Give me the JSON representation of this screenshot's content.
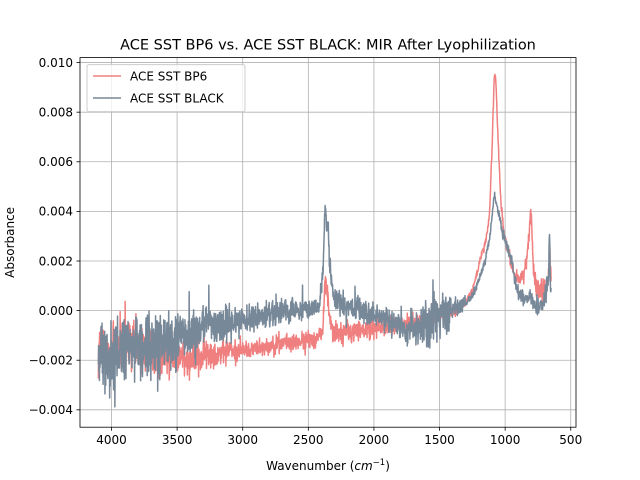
{
  "chart_data": {
    "type": "line",
    "title": "ACE SST BP6 vs. ACE SST BLACK: MIR After Lyophilization",
    "xlabel_prefix": "Wavenumber (",
    "xlabel_math": "cm",
    "xlabel_sup": "−1",
    "xlabel_suffix": ")",
    "ylabel": "Absorbance",
    "xlim": [
      4240,
      460
    ],
    "ylim": [
      -0.0047,
      0.0102
    ],
    "x_ticks": [
      4000,
      3500,
      3000,
      2500,
      2000,
      1500,
      1000,
      500
    ],
    "x_tick_labels": [
      "4000",
      "3500",
      "3000",
      "2500",
      "2000",
      "1500",
      "1000",
      "500"
    ],
    "y_ticks": [
      -0.004,
      -0.002,
      0.0,
      0.002,
      0.004,
      0.006,
      0.008,
      0.01
    ],
    "y_tick_labels": [
      "−0.004",
      "−0.002",
      "0.000",
      "0.002",
      "0.004",
      "0.006",
      "0.008",
      "0.010"
    ],
    "grid": true,
    "legend_position": "top-left",
    "series": [
      {
        "name": "ACE SST BP6",
        "color": "#f08080",
        "noise": [
          [
            4100,
            0.0013
          ],
          [
            3700,
            0.0011
          ],
          [
            3300,
            0.0007
          ],
          [
            3000,
            0.00035
          ],
          [
            2700,
            0.00035
          ],
          [
            2400,
            0.0004
          ],
          [
            2300,
            0.0005
          ],
          [
            1800,
            0.0004
          ],
          [
            1500,
            0.0003
          ],
          [
            1300,
            0.00012
          ],
          [
            1000,
            0.0002
          ],
          [
            650,
            0.0005
          ]
        ],
        "points": [
          [
            4100,
            -0.0016
          ],
          [
            4000,
            -0.0015
          ],
          [
            3900,
            -0.0014
          ],
          [
            3800,
            -0.0015
          ],
          [
            3700,
            -0.0016
          ],
          [
            3600,
            -0.0017
          ],
          [
            3500,
            -0.0018
          ],
          [
            3400,
            -0.0019
          ],
          [
            3300,
            -0.0018
          ],
          [
            3200,
            -0.0017
          ],
          [
            3100,
            -0.0016
          ],
          [
            3000,
            -0.0016
          ],
          [
            2900,
            -0.0015
          ],
          [
            2800,
            -0.0014
          ],
          [
            2700,
            -0.0013
          ],
          [
            2600,
            -0.0013
          ],
          [
            2500,
            -0.0012
          ],
          [
            2420,
            -0.0011
          ],
          [
            2390,
            -0.0007
          ],
          [
            2370,
            0.0012
          ],
          [
            2355,
            0.0008
          ],
          [
            2340,
            -0.0002
          ],
          [
            2320,
            -0.0006
          ],
          [
            2300,
            -0.0009
          ],
          [
            2200,
            -0.0009
          ],
          [
            2100,
            -0.0008
          ],
          [
            2000,
            -0.0007
          ],
          [
            1900,
            -0.0006
          ],
          [
            1800,
            -0.0006
          ],
          [
            1700,
            -0.0005
          ],
          [
            1600,
            -0.0004
          ],
          [
            1500,
            -0.0002
          ],
          [
            1400,
            -0.0001
          ],
          [
            1300,
            0.0003
          ],
          [
            1250,
            0.0008
          ],
          [
            1200,
            0.0018
          ],
          [
            1180,
            0.0023
          ],
          [
            1150,
            0.0027
          ],
          [
            1120,
            0.0038
          ],
          [
            1100,
            0.0065
          ],
          [
            1085,
            0.0092
          ],
          [
            1078,
            0.0096
          ],
          [
            1070,
            0.0092
          ],
          [
            1060,
            0.0078
          ],
          [
            1045,
            0.0058
          ],
          [
            1030,
            0.0042
          ],
          [
            1010,
            0.0032
          ],
          [
            990,
            0.0026
          ],
          [
            970,
            0.0023
          ],
          [
            950,
            0.0018
          ],
          [
            920,
            0.0014
          ],
          [
            900,
            0.0013
          ],
          [
            880,
            0.0013
          ],
          [
            860,
            0.0016
          ],
          [
            840,
            0.0018
          ],
          [
            820,
            0.0028
          ],
          [
            805,
            0.0043
          ],
          [
            795,
            0.0032
          ],
          [
            785,
            0.0017
          ],
          [
            770,
            0.0011
          ],
          [
            750,
            0.0009
          ],
          [
            730,
            0.0008
          ],
          [
            710,
            0.0009
          ],
          [
            690,
            0.0008
          ],
          [
            680,
            0.0011
          ],
          [
            670,
            0.0014
          ],
          [
            660,
            0.0024
          ],
          [
            650,
            0.0015
          ]
        ]
      },
      {
        "name": "ACE SST BLACK",
        "color": "#778899",
        "noise": [
          [
            4100,
            0.0014
          ],
          [
            3700,
            0.0015
          ],
          [
            3300,
            0.001
          ],
          [
            3000,
            0.0006
          ],
          [
            2700,
            0.0005
          ],
          [
            2400,
            0.0004
          ],
          [
            2300,
            0.0005
          ],
          [
            1800,
            0.0005
          ],
          [
            1600,
            0.0011
          ],
          [
            1400,
            0.0006
          ],
          [
            1300,
            0.00015
          ],
          [
            1000,
            0.0002
          ],
          [
            650,
            0.0005
          ]
        ],
        "points": [
          [
            4100,
            -0.002
          ],
          [
            4000,
            -0.0018
          ],
          [
            3900,
            -0.0016
          ],
          [
            3800,
            -0.0016
          ],
          [
            3700,
            -0.0015
          ],
          [
            3600,
            -0.0013
          ],
          [
            3500,
            -0.001
          ],
          [
            3400,
            -0.0009
          ],
          [
            3300,
            -0.0007
          ],
          [
            3200,
            -0.0006
          ],
          [
            3100,
            -0.0005
          ],
          [
            3000,
            -0.0004
          ],
          [
            2900,
            -0.0003
          ],
          [
            2800,
            -0.0002
          ],
          [
            2700,
            -0.0001
          ],
          [
            2600,
            0.0
          ],
          [
            2500,
            0.0001
          ],
          [
            2420,
            0.0002
          ],
          [
            2400,
            0.0008
          ],
          [
            2385,
            0.002
          ],
          [
            2372,
            0.0044
          ],
          [
            2362,
            0.0033
          ],
          [
            2350,
            0.0034
          ],
          [
            2340,
            0.0021
          ],
          [
            2320,
            0.0009
          ],
          [
            2300,
            0.0004
          ],
          [
            2200,
            0.0002
          ],
          [
            2100,
            0.0
          ],
          [
            2000,
            -0.0002
          ],
          [
            1900,
            -0.0004
          ],
          [
            1800,
            -0.0006
          ],
          [
            1700,
            -0.0007
          ],
          [
            1600,
            -0.0006
          ],
          [
            1500,
            -0.0003
          ],
          [
            1400,
            0.0
          ],
          [
            1300,
            0.0003
          ],
          [
            1250,
            0.0006
          ],
          [
            1200,
            0.0012
          ],
          [
            1150,
            0.0021
          ],
          [
            1120,
            0.0029
          ],
          [
            1100,
            0.0038
          ],
          [
            1085,
            0.0046
          ],
          [
            1075,
            0.0045
          ],
          [
            1060,
            0.0041
          ],
          [
            1040,
            0.0037
          ],
          [
            1020,
            0.0032
          ],
          [
            1000,
            0.0028
          ],
          [
            980,
            0.0025
          ],
          [
            960,
            0.0022
          ],
          [
            940,
            0.0018
          ],
          [
            920,
            0.0011
          ],
          [
            900,
            0.0007
          ],
          [
            880,
            0.0006
          ],
          [
            860,
            0.0005
          ],
          [
            840,
            0.0005
          ],
          [
            820,
            0.0006
          ],
          [
            800,
            0.0005
          ],
          [
            780,
            0.0003
          ],
          [
            760,
            0.0002
          ],
          [
            740,
            0.0002
          ],
          [
            720,
            0.0003
          ],
          [
            700,
            0.0005
          ],
          [
            680,
            0.0009
          ],
          [
            670,
            0.0012
          ],
          [
            662,
            0.0036
          ],
          [
            655,
            0.001
          ],
          [
            650,
            0.0006
          ]
        ]
      }
    ]
  }
}
